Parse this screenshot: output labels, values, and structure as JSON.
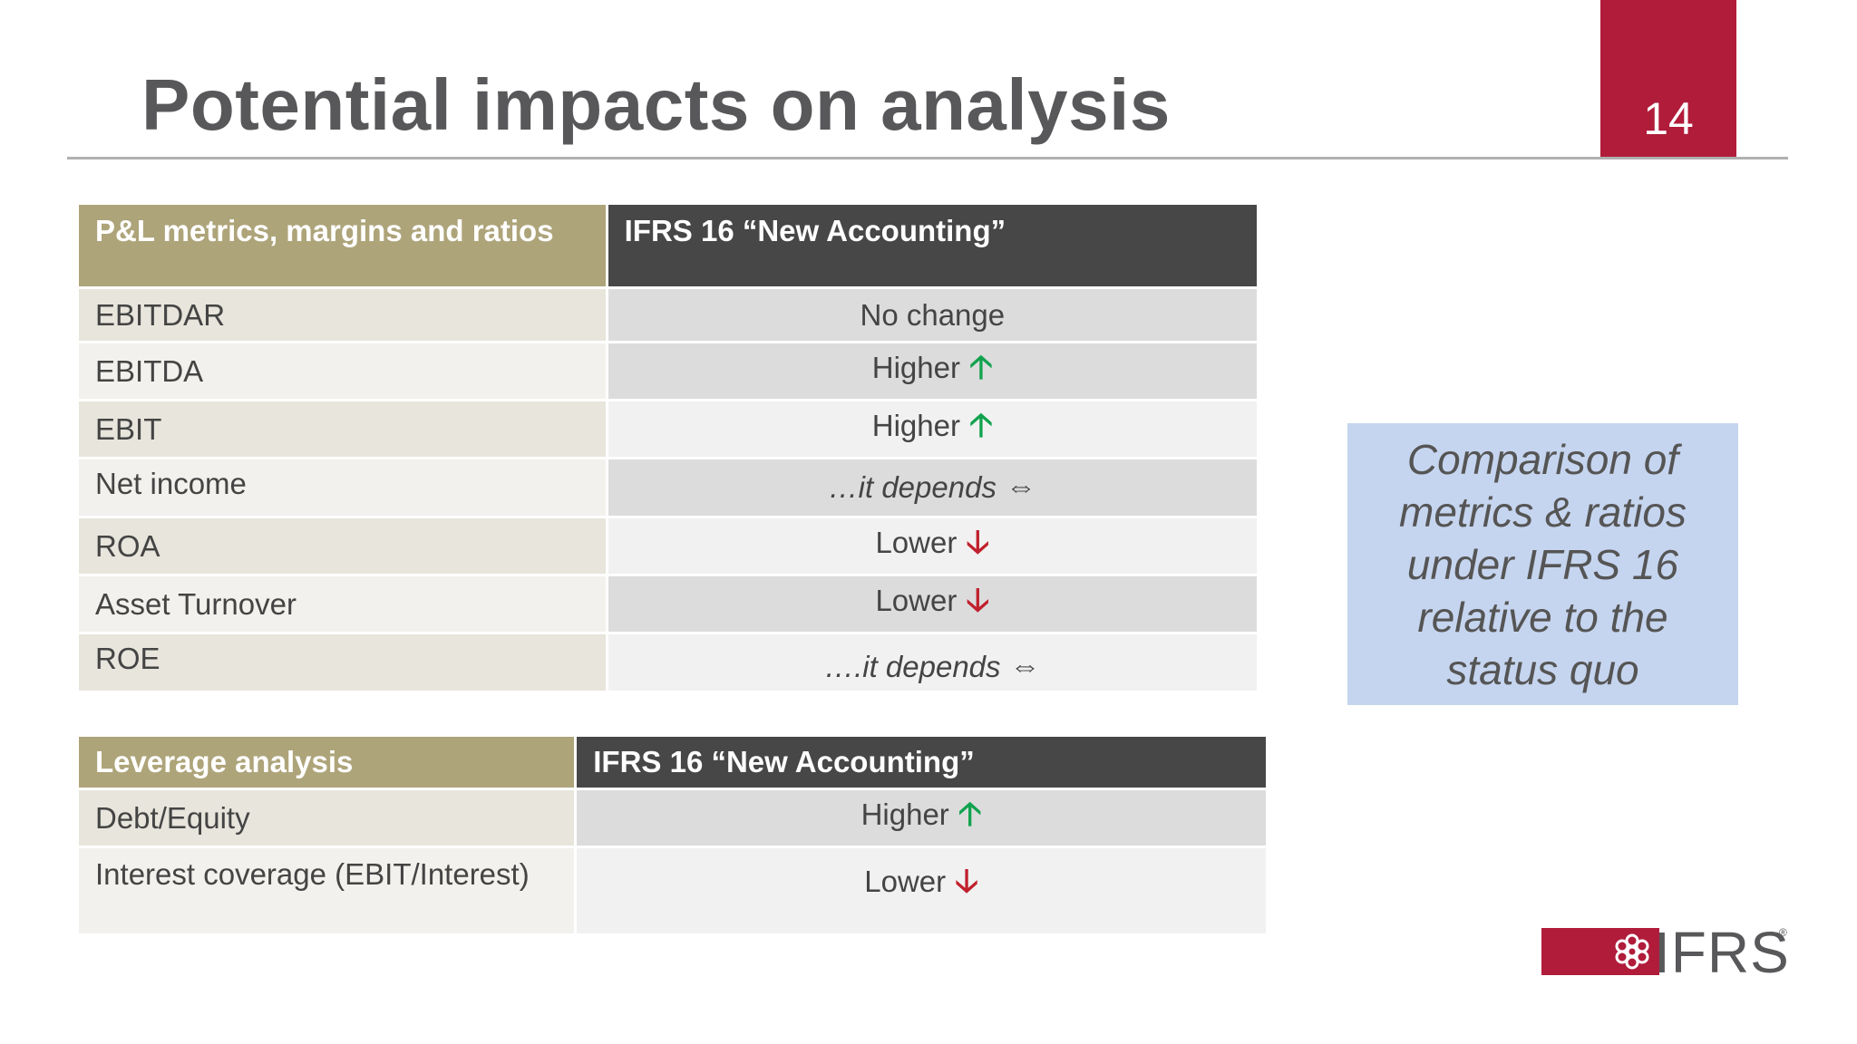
{
  "slide": {
    "title": "Potential impacts on analysis",
    "page_number": "14"
  },
  "pl_table": {
    "headers": [
      "P&L metrics, margins and ratios",
      "IFRS 16 “New Accounting”"
    ],
    "rows": [
      {
        "metric": "EBITDAR",
        "impact": "No change",
        "indicator": ""
      },
      {
        "metric": "EBITDA",
        "impact": "Higher",
        "indicator": "up-arrow"
      },
      {
        "metric": "EBIT",
        "impact": "Higher",
        "indicator": "up-arrow"
      },
      {
        "metric": "Net income",
        "impact": "…it depends",
        "indicator": "left-right-arrow"
      },
      {
        "metric": "ROA",
        "impact": "Lower",
        "indicator": "down-arrow"
      },
      {
        "metric": "Asset Turnover",
        "impact": "Lower",
        "indicator": "down-arrow"
      },
      {
        "metric": "ROE",
        "impact": "….it depends",
        "indicator": "left-right-arrow"
      }
    ]
  },
  "leverage_table": {
    "headers": [
      "Leverage analysis",
      "IFRS 16 “New Accounting”"
    ],
    "rows": [
      {
        "metric": "Debt/Equity",
        "impact": "Higher",
        "indicator": "up-arrow"
      },
      {
        "metric": "Interest coverage (EBIT/Interest)",
        "impact": "Lower",
        "indicator": "down-arrow"
      }
    ]
  },
  "callout": {
    "text": "Comparison of metrics & ratios under IFRS 16 relative to the status quo"
  },
  "logo": {
    "text": "IFRS",
    "mark": "ifrs-flower-mark",
    "brand_color": "#b01c3a"
  },
  "colors": {
    "accent_red": "#b01c3a",
    "header_gold": "#aea47a",
    "header_dark": "#474747",
    "arrow_up": "#11a24e",
    "arrow_down": "#c0202c",
    "callout_bg": "#c6d5ef"
  }
}
